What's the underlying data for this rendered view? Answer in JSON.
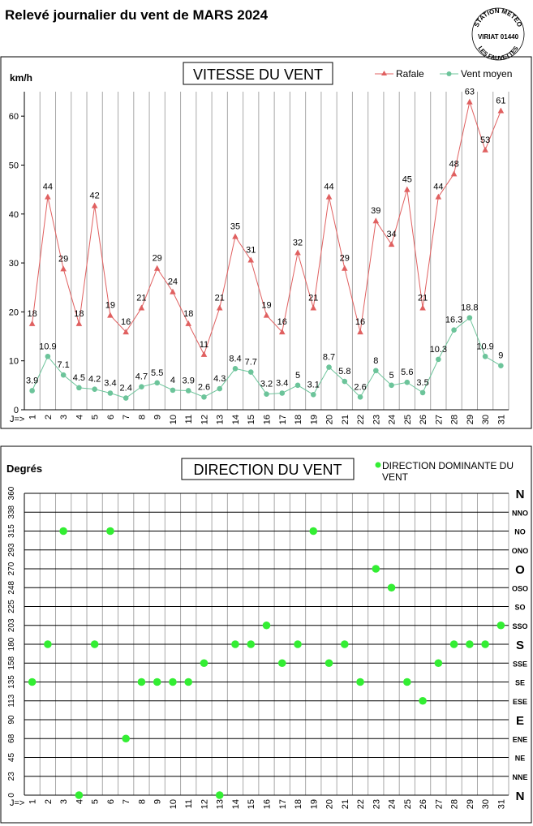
{
  "page": {
    "title": "Relevé journalier du vent de MARS 2024",
    "stamp": {
      "top_text": "STATION METEO",
      "middle_text": "VIRIAT 01440",
      "bottom_text": "LES FAUVETTES"
    }
  },
  "chart_data": [
    {
      "type": "line",
      "title": "VITESSE DU VENT",
      "ylabel": "km/h",
      "xlabel": "J=>",
      "categories": [
        "1",
        "2",
        "3",
        "4",
        "5",
        "6",
        "7",
        "8",
        "9",
        "10",
        "11",
        "12",
        "13",
        "14",
        "15",
        "16",
        "17",
        "18",
        "19",
        "20",
        "21",
        "22",
        "23",
        "24",
        "25",
        "26",
        "27",
        "28",
        "29",
        "30",
        "31"
      ],
      "ylim": [
        0,
        65
      ],
      "yticks": [
        0,
        10,
        20,
        30,
        40,
        50,
        60
      ],
      "legend_position": "top-right",
      "series": [
        {
          "name": "Rafale",
          "color": "#e06060",
          "marker": "triangle",
          "labels": [
            "18",
            "44",
            "29",
            "18",
            "42",
            "19",
            "16",
            "21",
            "29",
            "24",
            "18",
            "11",
            "21",
            "35",
            "31",
            "19",
            "16",
            "32",
            "21",
            "44",
            "29",
            "16",
            "39",
            "34",
            "45",
            "21",
            "44",
            "48",
            "63",
            "53",
            "61"
          ],
          "values": [
            17.6,
            43.5,
            28.8,
            17.6,
            41.7,
            19.3,
            15.9,
            20.8,
            28.9,
            24.1,
            17.6,
            11.3,
            20.8,
            35.4,
            30.6,
            19.3,
            15.9,
            32.1,
            20.8,
            43.5,
            28.9,
            15.9,
            38.6,
            33.8,
            45.0,
            20.8,
            43.5,
            48.2,
            62.9,
            53.1,
            61.1
          ]
        },
        {
          "name": "Vent moyen",
          "color": "#6cc49a",
          "marker": "circle",
          "labels": [
            "3.9",
            "10.9",
            "7.1",
            "4.5",
            "4.2",
            "3.4",
            "2.4",
            "4.7",
            "5.5",
            "4",
            "3.9",
            "2.6",
            "4.3",
            "8.4",
            "7.7",
            "3.2",
            "3.4",
            "5",
            "3.1",
            "8.7",
            "5.8",
            "2.6",
            "8",
            "5",
            "5.6",
            "3.5",
            "10.3",
            "16.3",
            "18.8",
            "10.9",
            "9"
          ],
          "values": [
            3.9,
            10.9,
            7.1,
            4.5,
            4.2,
            3.4,
            2.4,
            4.7,
            5.5,
            4,
            3.9,
            2.6,
            4.3,
            8.4,
            7.7,
            3.2,
            3.4,
            5,
            3.1,
            8.7,
            5.8,
            2.6,
            8,
            5,
            5.6,
            3.5,
            10.3,
            16.3,
            18.8,
            10.9,
            9
          ]
        }
      ]
    },
    {
      "type": "scatter",
      "title": "DIRECTION DU VENT",
      "ylabel": "Degrés",
      "xlabel": "J=>",
      "categories": [
        "1",
        "2",
        "3",
        "4",
        "5",
        "6",
        "7",
        "8",
        "9",
        "10",
        "11",
        "12",
        "13",
        "14",
        "15",
        "16",
        "17",
        "18",
        "19",
        "20",
        "21",
        "22",
        "23",
        "24",
        "25",
        "26",
        "27",
        "28",
        "29",
        "30",
        "31"
      ],
      "ylim": [
        0,
        360
      ],
      "yticks": [
        "0",
        "23",
        "45",
        "68",
        "90",
        "113",
        "135",
        "158",
        "180",
        "203",
        "225",
        "248",
        "270",
        "293",
        "315",
        "338",
        "360"
      ],
      "direction_labels": [
        "N",
        "NNE",
        "NE",
        "ENE",
        "E",
        "ESE",
        "SE",
        "SSE",
        "S",
        "SSO",
        "SO",
        "OSO",
        "O",
        "ONO",
        "NO",
        "NNO",
        "N"
      ],
      "legend_position": "top-right",
      "series": [
        {
          "name": "DIRECTION DOMINANTE DU VENT",
          "color": "#33ee33",
          "values": [
            135,
            180,
            315,
            0,
            180,
            315,
            67.5,
            135,
            135,
            135,
            135,
            157.5,
            0,
            180,
            180,
            202.5,
            157.5,
            180,
            315,
            157.5,
            180,
            135,
            270,
            247.5,
            135,
            112.5,
            157.5,
            180,
            180,
            180,
            202.5
          ]
        }
      ]
    }
  ]
}
